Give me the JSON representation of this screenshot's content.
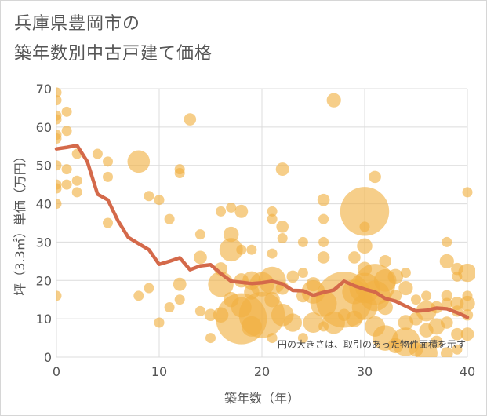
{
  "chart_data": {
    "type": "scatter",
    "title_line1": "兵庫県豊岡市の",
    "title_line2": "築年数別中古戸建て価格",
    "xlabel": "築年数（年）",
    "ylabel": "坪（3.3㎡）単価（万円）",
    "xlim": [
      0,
      40
    ],
    "ylim": [
      0,
      70
    ],
    "x_ticks": [
      "0",
      "10",
      "20",
      "30",
      "40"
    ],
    "y_ticks": [
      "0",
      "10",
      "20",
      "30",
      "40",
      "50",
      "60",
      "70"
    ],
    "annotation": "円の大きさは、取引のあった物件面積を示す",
    "colors": {
      "bubble": "#f0b040",
      "line": "#d4694a",
      "grid": "#dcdcdc"
    },
    "trend_line": {
      "x": [
        0,
        1,
        2,
        3,
        4,
        5,
        6,
        7,
        8,
        9,
        10,
        11,
        12,
        13,
        14,
        15,
        16,
        17,
        18,
        19,
        20,
        21,
        22,
        23,
        24,
        25,
        26,
        27,
        28,
        29,
        30,
        31,
        32,
        33,
        34,
        35,
        36,
        37,
        38,
        39,
        40
      ],
      "y": [
        54.3,
        54.7,
        55.2,
        51,
        42.5,
        41,
        35.5,
        31.2,
        29.6,
        28,
        24.2,
        25,
        25.9,
        22.8,
        23.8,
        24.1,
        21.8,
        19.8,
        19.5,
        19.2,
        19.4,
        19.8,
        19.1,
        17.4,
        17.3,
        16.1,
        16.9,
        17.5,
        19.8,
        18.6,
        17.7,
        17,
        15.3,
        14.6,
        13.3,
        12,
        12.2,
        12.8,
        12.6,
        11.6,
        10.4
      ]
    },
    "points": [
      {
        "x": 0,
        "y": 69,
        "s": 1
      },
      {
        "x": 0,
        "y": 67,
        "s": 1
      },
      {
        "x": 0,
        "y": 63,
        "s": 1
      },
      {
        "x": 0,
        "y": 62,
        "s": 1
      },
      {
        "x": 0,
        "y": 58,
        "s": 1
      },
      {
        "x": 0,
        "y": 57,
        "s": 1
      },
      {
        "x": 0,
        "y": 50,
        "s": 1
      },
      {
        "x": 0,
        "y": 45,
        "s": 1
      },
      {
        "x": 0,
        "y": 44,
        "s": 1
      },
      {
        "x": 0,
        "y": 40,
        "s": 1
      },
      {
        "x": 0,
        "y": 16,
        "s": 1
      },
      {
        "x": 1,
        "y": 64,
        "s": 1
      },
      {
        "x": 1,
        "y": 59,
        "s": 1
      },
      {
        "x": 1,
        "y": 49,
        "s": 1
      },
      {
        "x": 1,
        "y": 45,
        "s": 1
      },
      {
        "x": 2,
        "y": 43,
        "s": 1
      },
      {
        "x": 2,
        "y": 46,
        "s": 1
      },
      {
        "x": 2,
        "y": 53,
        "s": 1
      },
      {
        "x": 4,
        "y": 53,
        "s": 1
      },
      {
        "x": 5,
        "y": 51,
        "s": 1
      },
      {
        "x": 5,
        "y": 47,
        "s": 1
      },
      {
        "x": 5,
        "y": 35,
        "s": 1
      },
      {
        "x": 8,
        "y": 51,
        "s": 2.2
      },
      {
        "x": 8,
        "y": 16,
        "s": 1
      },
      {
        "x": 9,
        "y": 42,
        "s": 1
      },
      {
        "x": 9,
        "y": 18,
        "s": 1
      },
      {
        "x": 10,
        "y": 41,
        "s": 1
      },
      {
        "x": 10,
        "y": 9,
        "s": 1
      },
      {
        "x": 11,
        "y": 36,
        "s": 1
      },
      {
        "x": 11,
        "y": 13,
        "s": 1
      },
      {
        "x": 12,
        "y": 49,
        "s": 1
      },
      {
        "x": 12,
        "y": 48,
        "s": 1
      },
      {
        "x": 12,
        "y": 19,
        "s": 1.3
      },
      {
        "x": 12,
        "y": 15,
        "s": 1
      },
      {
        "x": 13,
        "y": 62,
        "s": 1.2
      },
      {
        "x": 14,
        "y": 32,
        "s": 1
      },
      {
        "x": 14,
        "y": 26,
        "s": 1.3
      },
      {
        "x": 14,
        "y": 12,
        "s": 1
      },
      {
        "x": 15,
        "y": 11,
        "s": 1.2
      },
      {
        "x": 15,
        "y": 5,
        "s": 1
      },
      {
        "x": 16,
        "y": 38,
        "s": 1
      },
      {
        "x": 16,
        "y": 23,
        "s": 1.3
      },
      {
        "x": 16,
        "y": 19,
        "s": 2.5
      },
      {
        "x": 16,
        "y": 11,
        "s": 1.5
      },
      {
        "x": 17,
        "y": 39,
        "s": 1
      },
      {
        "x": 17,
        "y": 32,
        "s": 1.5
      },
      {
        "x": 17,
        "y": 28,
        "s": 2.3
      },
      {
        "x": 17,
        "y": 15,
        "s": 1.5
      },
      {
        "x": 18,
        "y": 38,
        "s": 1.3
      },
      {
        "x": 18,
        "y": 28,
        "s": 1
      },
      {
        "x": 18,
        "y": 20,
        "s": 1.4
      },
      {
        "x": 18,
        "y": 13,
        "s": 2
      },
      {
        "x": 18,
        "y": 10,
        "s": 5
      },
      {
        "x": 19,
        "y": 28,
        "s": 1
      },
      {
        "x": 19,
        "y": 20,
        "s": 1.8
      },
      {
        "x": 19,
        "y": 17,
        "s": 1.5
      },
      {
        "x": 19,
        "y": 8,
        "s": 2
      },
      {
        "x": 20,
        "y": 19,
        "s": 2.4
      },
      {
        "x": 20,
        "y": 11,
        "s": 4.5
      },
      {
        "x": 21,
        "y": 38,
        "s": 1
      },
      {
        "x": 21,
        "y": 36,
        "s": 1
      },
      {
        "x": 21,
        "y": 27,
        "s": 1
      },
      {
        "x": 21,
        "y": 20,
        "s": 2.7
      },
      {
        "x": 21,
        "y": 15,
        "s": 1.5
      },
      {
        "x": 21,
        "y": 5,
        "s": 1
      },
      {
        "x": 22,
        "y": 49,
        "s": 1.3
      },
      {
        "x": 22,
        "y": 34,
        "s": 1.2
      },
      {
        "x": 22,
        "y": 31,
        "s": 1
      },
      {
        "x": 22,
        "y": 18,
        "s": 1.3
      },
      {
        "x": 22,
        "y": 11,
        "s": 2.2
      },
      {
        "x": 23,
        "y": 21,
        "s": 1.2
      },
      {
        "x": 23,
        "y": 9,
        "s": 1.8
      },
      {
        "x": 24,
        "y": 30,
        "s": 1
      },
      {
        "x": 24,
        "y": 22,
        "s": 1
      },
      {
        "x": 24,
        "y": 16,
        "s": 1.3
      },
      {
        "x": 24,
        "y": 5,
        "s": 1
      },
      {
        "x": 25,
        "y": 19,
        "s": 1.4
      },
      {
        "x": 25,
        "y": 17,
        "s": 2.3
      },
      {
        "x": 25,
        "y": 9,
        "s": 2
      },
      {
        "x": 26,
        "y": 41,
        "s": 1.2
      },
      {
        "x": 26,
        "y": 36,
        "s": 1
      },
      {
        "x": 26,
        "y": 30,
        "s": 1
      },
      {
        "x": 26,
        "y": 26,
        "s": 1.2
      },
      {
        "x": 26,
        "y": 14,
        "s": 2.6
      },
      {
        "x": 26,
        "y": 8,
        "s": 1
      },
      {
        "x": 27,
        "y": 67,
        "s": 1.4
      },
      {
        "x": 27,
        "y": 9,
        "s": 2.2
      },
      {
        "x": 28,
        "y": 15,
        "s": 5.5
      },
      {
        "x": 28,
        "y": 11,
        "s": 1.2
      },
      {
        "x": 29,
        "y": 26,
        "s": 1.2
      },
      {
        "x": 29,
        "y": 17,
        "s": 2.4
      },
      {
        "x": 29,
        "y": 10,
        "s": 1.6
      },
      {
        "x": 30,
        "y": 38,
        "s": 4.8
      },
      {
        "x": 30,
        "y": 34,
        "s": 1
      },
      {
        "x": 30,
        "y": 29,
        "s": 1.5
      },
      {
        "x": 30,
        "y": 23,
        "s": 1.4
      },
      {
        "x": 30,
        "y": 18,
        "s": 3
      },
      {
        "x": 30,
        "y": 13,
        "s": 2.5
      },
      {
        "x": 31,
        "y": 47,
        "s": 1.2
      },
      {
        "x": 31,
        "y": 19,
        "s": 4
      },
      {
        "x": 31,
        "y": 16,
        "s": 3
      },
      {
        "x": 31,
        "y": 8,
        "s": 2
      },
      {
        "x": 32,
        "y": 25,
        "s": 1.2
      },
      {
        "x": 32,
        "y": 20,
        "s": 2.2
      },
      {
        "x": 32,
        "y": 13,
        "s": 1.5
      },
      {
        "x": 32,
        "y": 5,
        "s": 2.5
      },
      {
        "x": 33,
        "y": 21,
        "s": 1.5
      },
      {
        "x": 33,
        "y": 16,
        "s": 1.2
      },
      {
        "x": 33,
        "y": 3,
        "s": 1.5
      },
      {
        "x": 34,
        "y": 22,
        "s": 1
      },
      {
        "x": 34,
        "y": 18,
        "s": 1.4
      },
      {
        "x": 34,
        "y": 9,
        "s": 1.5
      },
      {
        "x": 34,
        "y": 4,
        "s": 2.8
      },
      {
        "x": 35,
        "y": 15,
        "s": 1
      },
      {
        "x": 35,
        "y": 10,
        "s": 1.3
      },
      {
        "x": 35,
        "y": 2,
        "s": 1.4
      },
      {
        "x": 36,
        "y": 16,
        "s": 1
      },
      {
        "x": 36,
        "y": 12,
        "s": 2
      },
      {
        "x": 36,
        "y": 7,
        "s": 1.4
      },
      {
        "x": 36,
        "y": 1,
        "s": 2.2
      },
      {
        "x": 37,
        "y": 13,
        "s": 1.2
      },
      {
        "x": 37,
        "y": 8,
        "s": 1.6
      },
      {
        "x": 37,
        "y": 4,
        "s": 1.2
      },
      {
        "x": 38,
        "y": 30,
        "s": 1
      },
      {
        "x": 38,
        "y": 25,
        "s": 1.4
      },
      {
        "x": 38,
        "y": 16,
        "s": 1.1
      },
      {
        "x": 38,
        "y": 14,
        "s": 1.1
      },
      {
        "x": 38,
        "y": 9,
        "s": 1.2
      },
      {
        "x": 38,
        "y": 1,
        "s": 1.2
      },
      {
        "x": 39,
        "y": 23,
        "s": 1.2
      },
      {
        "x": 39,
        "y": 21,
        "s": 1
      },
      {
        "x": 39,
        "y": 14,
        "s": 1.3
      },
      {
        "x": 39,
        "y": 12,
        "s": 1.1
      },
      {
        "x": 39,
        "y": 6,
        "s": 1.2
      },
      {
        "x": 39,
        "y": 2,
        "s": 1
      },
      {
        "x": 40,
        "y": 43,
        "s": 1
      },
      {
        "x": 40,
        "y": 22,
        "s": 1.8
      },
      {
        "x": 40,
        "y": 16,
        "s": 1
      },
      {
        "x": 40,
        "y": 14,
        "s": 1.5
      },
      {
        "x": 40,
        "y": 11,
        "s": 1.1
      },
      {
        "x": 40,
        "y": 6,
        "s": 1.3
      }
    ]
  }
}
